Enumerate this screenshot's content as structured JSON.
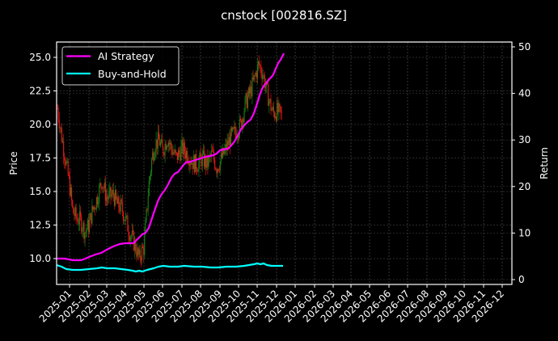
{
  "chart_data": {
    "type": "line",
    "title": "cnstock [002816.SZ]",
    "xlabel": "",
    "ylabel": "Price",
    "ylabel_right": "Return",
    "grid": true,
    "legend_position": "upper left",
    "x_ticks": [
      "2025-01",
      "2025-02",
      "2025-03",
      "2025-04",
      "2025-05",
      "2025-06",
      "2025-07",
      "2025-08",
      "2025-09",
      "2025-10",
      "2025-11",
      "2025-12",
      "2026-01",
      "2026-02",
      "2026-03",
      "2026-04",
      "2026-05",
      "2026-06",
      "2026-07",
      "2026-08",
      "2026-09",
      "2026-10",
      "2026-11",
      "2026-12"
    ],
    "y_ticks_left": [
      "10.0",
      "12.5",
      "15.0",
      "17.5",
      "20.0",
      "22.5",
      "25.0"
    ],
    "y_ticks_right": [
      "0",
      "10",
      "20",
      "30",
      "40",
      "50"
    ],
    "ylim_left": [
      8.1,
      26.1
    ],
    "ylim_right": [
      -1,
      51
    ],
    "colors": {
      "ai_strategy": "#ff00ff",
      "buy_and_hold": "#00ffff",
      "up_candle": "#008000",
      "down_candle": "#ff0000",
      "background": "#000000",
      "axis": "#ffffff"
    },
    "series": [
      {
        "name": "AI Strategy",
        "axis": "right",
        "x": [
          "2025-01",
          "2025-02",
          "2025-03",
          "2025-04",
          "2025-05",
          "2025-06",
          "2025-07",
          "2025-08",
          "2025-09",
          "2025-10",
          "2025-11",
          "2025-12",
          "2025-12-31"
        ],
        "values": [
          4.5,
          4.2,
          5.8,
          7.7,
          8.2,
          16.5,
          23.5,
          25.2,
          26.8,
          31.0,
          42.0,
          47.0,
          48.5
        ]
      },
      {
        "name": "Buy-and-Hold",
        "axis": "right",
        "x": [
          "2025-01",
          "2025-02",
          "2025-03",
          "2025-04",
          "2025-05",
          "2025-06",
          "2025-07",
          "2025-08",
          "2025-09",
          "2025-10",
          "2025-11",
          "2025-12",
          "2025-12-31"
        ],
        "values": [
          3.0,
          2.0,
          2.1,
          2.2,
          1.5,
          2.6,
          2.8,
          2.7,
          2.6,
          2.8,
          3.3,
          3.1,
          3.0
        ]
      }
    ],
    "price_candles": {
      "axis": "left",
      "approx_close_by_month": {
        "2025-01": 20.5,
        "2025-02": 13.5,
        "2025-03": 14.5,
        "2025-04": 14.0,
        "2025-05": 10.5,
        "2025-06": 18.5,
        "2025-07": 18.0,
        "2025-08": 17.5,
        "2025-09": 17.0,
        "2025-10": 19.0,
        "2025-11": 23.5,
        "2025-12": 20.7
      }
    }
  },
  "legend": {
    "items": [
      {
        "label": "AI Strategy",
        "color": "#ff00ff"
      },
      {
        "label": "Buy-and-Hold",
        "color": "#00ffff"
      }
    ]
  }
}
